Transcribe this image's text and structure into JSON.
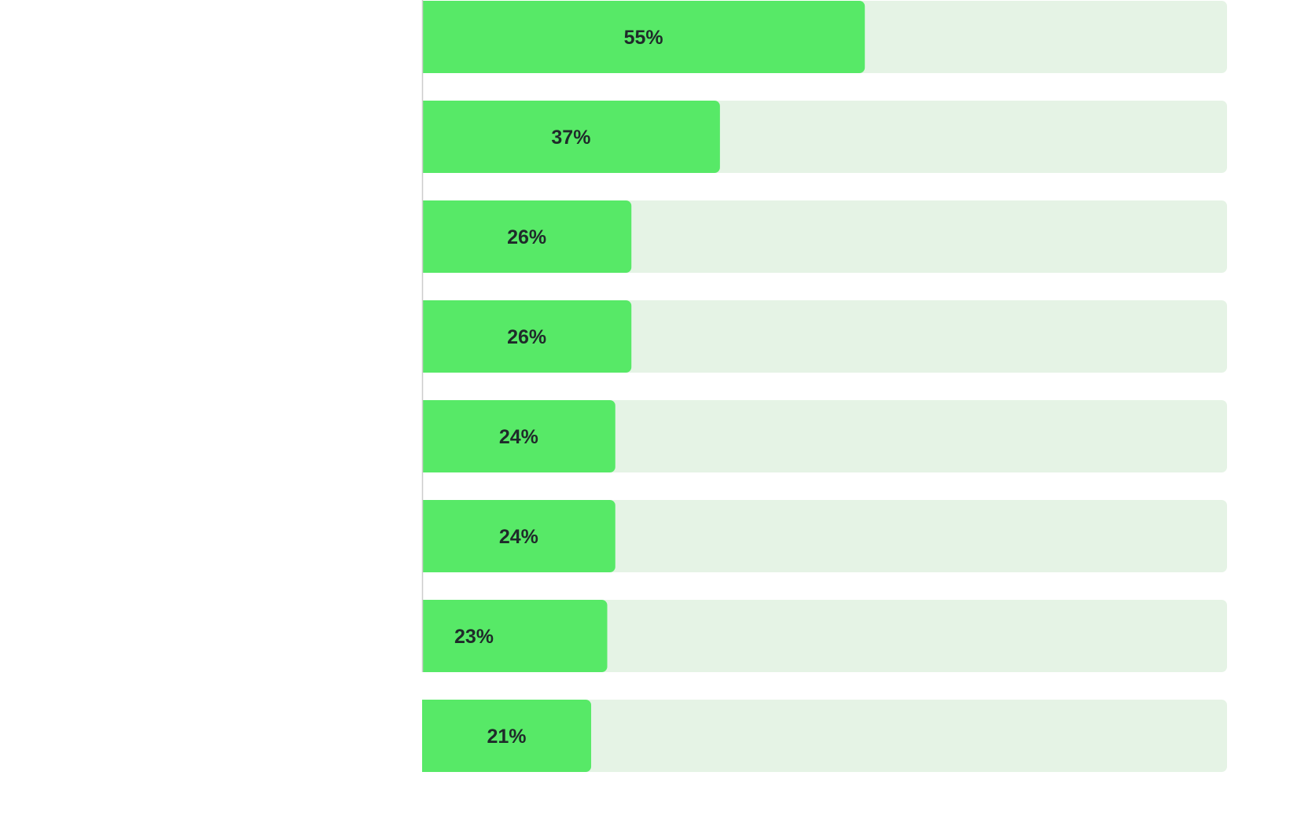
{
  "chart_data": {
    "type": "bar",
    "orientation": "horizontal",
    "title": "",
    "xlabel": "",
    "ylabel": "",
    "categories": [],
    "values": [
      55,
      37,
      26,
      26,
      24,
      24,
      23,
      21
    ],
    "labels": [
      "55%",
      "37%",
      "26%",
      "26%",
      "24%",
      "24%",
      "23%",
      "21%"
    ],
    "xlim": [
      0,
      100
    ],
    "grid": false,
    "colors": {
      "bar": "#57e967",
      "track": "#e5f3e5",
      "label": "#1f2a2a",
      "axis": "#cccccc"
    }
  }
}
